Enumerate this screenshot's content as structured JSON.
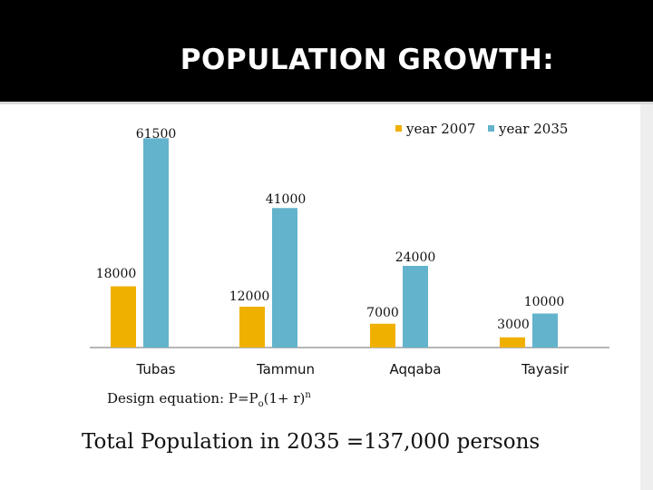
{
  "header": {
    "title": "POPULATION GROWTH:"
  },
  "chart_data": {
    "type": "bar",
    "title": "",
    "xlabel": "",
    "ylabel": "",
    "categories": [
      "Tubas",
      "Tammun",
      "Aqqaba",
      "Tayasir"
    ],
    "series": [
      {
        "name": "year 2007",
        "color": "#f0b000",
        "values": [
          18000,
          12000,
          7000,
          3000
        ]
      },
      {
        "name": "year 2035",
        "color": "#63b3cc",
        "values": [
          61500,
          41000,
          24000,
          10000
        ]
      }
    ],
    "ylim": [
      0,
      64000
    ],
    "grid": false,
    "legend": "top-right"
  },
  "equation": {
    "prefix": "Design equation:  P=P",
    "sub": "o",
    "middle": "(1+ r)",
    "sup": "n"
  },
  "total_text": "Total Population in 2035 =137,000 persons"
}
